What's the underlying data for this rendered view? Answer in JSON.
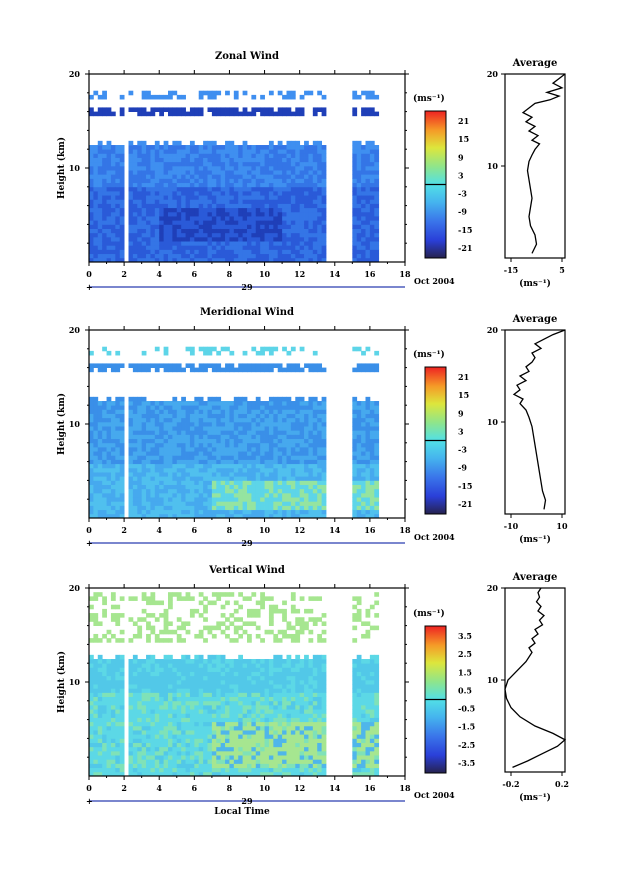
{
  "chart_data": [
    {
      "type": "heatmap",
      "title": "Zonal Wind",
      "ylabel": "Height (km)",
      "ylim": [
        0,
        20
      ],
      "yticks": [
        "20",
        "10"
      ],
      "xlim": [
        0,
        18
      ],
      "xticks": [
        "0",
        "2",
        "4",
        "6",
        "8",
        "10",
        "12",
        "14",
        "16",
        "18"
      ],
      "date_marker": "29",
      "date_label": "Oct 2004",
      "colorbar": {
        "unit": "(ms⁻¹)",
        "ticks": [
          "21",
          "15",
          "9",
          "3",
          "-3",
          "-9",
          "-15",
          "-21"
        ],
        "zero_line": true
      },
      "data_gaps_hours": [
        [
          2.0,
          2.3
        ],
        [
          13.6,
          15.0
        ],
        [
          15.9,
          16.0
        ]
      ],
      "field_summary": "Mostly negative (westward) winds of -3 to -21 ms⁻¹ below about 12 km, strongest near 3-5 km between hours 5 and 10; thin layer of data near 16-17 km",
      "profile": {
        "title": "Average",
        "xlim": [
          -15,
          5
        ],
        "xticks": [
          "-15",
          "5"
        ],
        "xlabel": "(ms⁻¹)",
        "yticks": [
          "20",
          "10"
        ],
        "points": [
          [
            -6,
            0.5
          ],
          [
            -4.5,
            1.5
          ],
          [
            -5,
            2.5
          ],
          [
            -6.5,
            3.5
          ],
          [
            -7,
            4.5
          ],
          [
            -6.5,
            5.5
          ],
          [
            -6,
            6.5
          ],
          [
            -6.5,
            7.5
          ],
          [
            -7,
            8.5
          ],
          [
            -7.5,
            9.5
          ],
          [
            -7,
            10.5
          ],
          [
            -6,
            11.2
          ],
          [
            -5,
            11.8
          ],
          [
            -3.5,
            12.4
          ],
          [
            -6,
            12.8
          ],
          [
            -4,
            13.3
          ],
          [
            -7,
            13.8
          ],
          [
            -5,
            14.3
          ],
          [
            -8,
            14.8
          ],
          [
            -6,
            15.3
          ],
          [
            -9,
            15.8
          ],
          [
            -7,
            16.3
          ],
          [
            -5,
            16.8
          ],
          [
            0,
            17.2
          ],
          [
            3,
            17.6
          ],
          [
            -1,
            18
          ],
          [
            4,
            18.5
          ],
          [
            1,
            19
          ],
          [
            3,
            19.5
          ],
          [
            5,
            20
          ]
        ]
      }
    },
    {
      "type": "heatmap",
      "title": "Meridional Wind",
      "ylabel": "Height (km)",
      "ylim": [
        0,
        20
      ],
      "yticks": [
        "20",
        "10"
      ],
      "xlim": [
        0,
        18
      ],
      "xticks": [
        "0",
        "2",
        "4",
        "6",
        "8",
        "10",
        "12",
        "14",
        "16",
        "18"
      ],
      "date_marker": "29",
      "date_label": "Oct 2004",
      "colorbar": {
        "unit": "(ms⁻¹)",
        "ticks": [
          "21",
          "15",
          "9",
          "3",
          "-3",
          "-9",
          "-15",
          "-21"
        ],
        "zero_line": true
      },
      "data_gaps_hours": [
        [
          2.0,
          2.3
        ],
        [
          13.6,
          15.0
        ],
        [
          15.9,
          16.0
        ]
      ],
      "field_summary": "Weak southward winds of -3 to -9 ms⁻¹ below about 12 km with patches near zero between 1 and 4 km after hour 8",
      "profile": {
        "title": "Average",
        "xlim": [
          -10,
          10
        ],
        "xticks": [
          "-10",
          "10"
        ],
        "xlabel": "(ms⁻¹)",
        "yticks": [
          "20",
          "10"
        ],
        "points": [
          [
            3,
            0.5
          ],
          [
            3.5,
            1.5
          ],
          [
            2.5,
            2.5
          ],
          [
            2,
            3.5
          ],
          [
            1.5,
            4.5
          ],
          [
            1,
            5.5
          ],
          [
            0.5,
            6.5
          ],
          [
            0,
            7.5
          ],
          [
            -0.5,
            8.5
          ],
          [
            -1,
            9.5
          ],
          [
            -2,
            10.5
          ],
          [
            -3,
            11.3
          ],
          [
            -5,
            12
          ],
          [
            -4,
            12.5
          ],
          [
            -7,
            13
          ],
          [
            -5,
            13.5
          ],
          [
            -6,
            14
          ],
          [
            -3,
            14.5
          ],
          [
            -5,
            15
          ],
          [
            -2,
            15.5
          ],
          [
            -3,
            16
          ],
          [
            -1,
            16.5
          ],
          [
            0,
            17
          ],
          [
            -1,
            17.5
          ],
          [
            2,
            18
          ],
          [
            0,
            18.5
          ],
          [
            3,
            19
          ],
          [
            6,
            19.5
          ],
          [
            10,
            20
          ]
        ]
      }
    },
    {
      "type": "heatmap",
      "title": "Vertical Wind",
      "ylabel": "Height (km)",
      "ylim": [
        0,
        20
      ],
      "yticks": [
        "20",
        "10"
      ],
      "xlim": [
        0,
        18
      ],
      "xticks": [
        "0",
        "2",
        "4",
        "6",
        "8",
        "10",
        "12",
        "14",
        "16",
        "18"
      ],
      "date_marker": "29",
      "date_label": "Oct 2004",
      "xlabel": "Local Time",
      "colorbar": {
        "unit": "(ms⁻¹)",
        "ticks": [
          "3.5",
          "2.5",
          "1.5",
          "0.5",
          "-0.5",
          "-1.5",
          "-2.5",
          "-3.5"
        ],
        "zero_line": true
      },
      "data_gaps_hours": [
        [
          2.0,
          2.3
        ],
        [
          13.6,
          15.0
        ],
        [
          15.9,
          16.0
        ]
      ],
      "field_summary": "Small vertical winds between -1 and +1 ms⁻¹; positive (upward) values near 1-5 km after hour 8 and scattered noise above 13 km",
      "profile": {
        "title": "Average",
        "xlim": [
          -0.2,
          0.2
        ],
        "xticks": [
          "-0.2",
          "0.2"
        ],
        "xlabel": "(ms⁻¹)",
        "yticks": [
          "20",
          "10"
        ],
        "points": [
          [
            -0.15,
            0.5
          ],
          [
            -0.05,
            1.2
          ],
          [
            0.05,
            2
          ],
          [
            0.15,
            2.8
          ],
          [
            0.2,
            3.5
          ],
          [
            0.12,
            4.2
          ],
          [
            0,
            5
          ],
          [
            -0.1,
            6
          ],
          [
            -0.16,
            7
          ],
          [
            -0.19,
            8
          ],
          [
            -0.2,
            9
          ],
          [
            -0.18,
            10
          ],
          [
            -0.12,
            11
          ],
          [
            -0.06,
            12
          ],
          [
            -0.02,
            13
          ],
          [
            -0.04,
            13.5
          ],
          [
            0,
            14
          ],
          [
            -0.02,
            14.5
          ],
          [
            0.02,
            15
          ],
          [
            0,
            15.5
          ],
          [
            0.05,
            16
          ],
          [
            0.03,
            16.5
          ],
          [
            0.06,
            17
          ],
          [
            0.02,
            17.5
          ],
          [
            0.04,
            18
          ],
          [
            0.01,
            18.5
          ],
          [
            0.03,
            19
          ],
          [
            0.02,
            19.5
          ],
          [
            0.04,
            20
          ]
        ]
      }
    }
  ]
}
